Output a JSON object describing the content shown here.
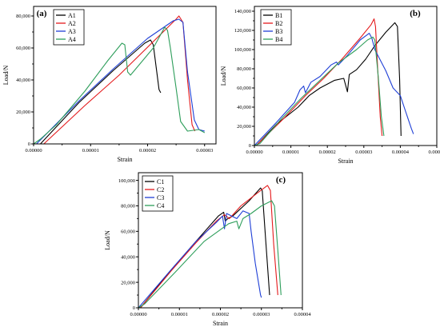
{
  "chart_data": [
    {
      "id": "a",
      "type": "line",
      "panel_label": "(a)",
      "xlabel": "Strain",
      "ylabel": "Load/N",
      "xlim": [
        0,
        3.2e-05
      ],
      "ylim": [
        0,
        86000
      ],
      "xticks": [
        0,
        1e-05,
        2e-05,
        3e-05
      ],
      "xtick_labels": [
        "0.00000",
        "0.00001",
        "0.00002",
        "0.00003"
      ],
      "yticks": [
        0,
        20000,
        40000,
        60000,
        80000
      ],
      "ytick_labels": [
        "0",
        "20,000",
        "40,000",
        "60,000",
        "80,000"
      ],
      "legend_position": "top-left",
      "series": [
        {
          "name": "A1",
          "color": "#000000",
          "points": [
            [
              1.2e-06,
              0
            ],
            [
              8e-06,
              26000
            ],
            [
              1.4e-05,
              46000
            ],
            [
              1.95e-05,
              63000
            ],
            [
              2.05e-05,
              65000
            ],
            [
              2.1e-05,
              62000
            ],
            [
              2.15e-05,
              48000
            ],
            [
              2.2e-05,
              34000
            ],
            [
              2.23e-05,
              32000
            ]
          ]
        },
        {
          "name": "A2",
          "color": "#e41a1c",
          "points": [
            [
              1.8e-06,
              0
            ],
            [
              9e-06,
              24000
            ],
            [
              1.5e-05,
              43000
            ],
            [
              2.1e-05,
              64000
            ],
            [
              2.5e-05,
              78000
            ],
            [
              2.55e-05,
              80000
            ],
            [
              2.62e-05,
              76000
            ],
            [
              2.7e-05,
              40000
            ],
            [
              2.78e-05,
              12000
            ],
            [
              2.83e-05,
              8000
            ]
          ]
        },
        {
          "name": "A3",
          "color": "#1f3fd6",
          "points": [
            [
              5e-07,
              0
            ],
            [
              8e-06,
              27000
            ],
            [
              1.4e-05,
              47000
            ],
            [
              2e-05,
              66000
            ],
            [
              2.45e-05,
              77000
            ],
            [
              2.55e-05,
              78000
            ],
            [
              2.62e-05,
              76000
            ],
            [
              2.7e-05,
              45000
            ],
            [
              2.82e-05,
              15000
            ],
            [
              2.9e-05,
              9000
            ],
            [
              3e-05,
              8000
            ]
          ]
        },
        {
          "name": "A4",
          "color": "#2e9e5b",
          "points": [
            [
              0,
              0
            ],
            [
              1.2e-06,
              3000
            ],
            [
              4e-06,
              12000
            ],
            [
              9e-06,
              33000
            ],
            [
              1.3e-05,
              52000
            ],
            [
              1.55e-05,
              63000
            ],
            [
              1.6e-05,
              62000
            ],
            [
              1.65e-05,
              45000
            ],
            [
              1.7e-05,
              43000
            ],
            [
              2.1e-05,
              60000
            ],
            [
              2.3e-05,
              73000
            ],
            [
              2.35e-05,
              71000
            ],
            [
              2.4e-05,
              60000
            ],
            [
              2.5e-05,
              35000
            ],
            [
              2.58e-05,
              14000
            ],
            [
              2.7e-05,
              8000
            ],
            [
              2.9e-05,
              9000
            ],
            [
              3e-05,
              7000
            ]
          ]
        }
      ]
    },
    {
      "id": "b",
      "type": "line",
      "panel_label": "(b)",
      "xlabel": "Strain",
      "ylabel": "Load/N",
      "xlim": [
        0,
        5e-05
      ],
      "ylim": [
        0,
        145000
      ],
      "xticks": [
        0,
        1e-05,
        2e-05,
        3e-05,
        4e-05,
        5e-05
      ],
      "xtick_labels": [
        "0.00000",
        "0.00001",
        "0.00002",
        "0.00003",
        "0.00004",
        "0.00005"
      ],
      "yticks": [
        0,
        20000,
        40000,
        60000,
        80000,
        100000,
        120000,
        140000
      ],
      "ytick_labels": [
        "0",
        "20,000",
        "40,000",
        "60,000",
        "80,000",
        "100,000",
        "120,000",
        "140,000"
      ],
      "legend_position": "top-left",
      "series": [
        {
          "name": "B1",
          "color": "#000000",
          "points": [
            [
              5e-07,
              0
            ],
            [
              6e-06,
              22000
            ],
            [
              1.2e-05,
              40000
            ],
            [
              1.5e-05,
              52000
            ],
            [
              1.8e-05,
              60000
            ],
            [
              2.2e-05,
              68000
            ],
            [
              2.45e-05,
              70000
            ],
            [
              2.55e-05,
              56000
            ],
            [
              2.6e-05,
              74000
            ],
            [
              2.8e-05,
              79000
            ],
            [
              3.05e-05,
              90000
            ],
            [
              3.3e-05,
              104000
            ],
            [
              3.6e-05,
              118000
            ],
            [
              3.85e-05,
              128000
            ],
            [
              3.92e-05,
              124000
            ],
            [
              3.98e-05,
              70000
            ],
            [
              4.02e-05,
              10000
            ]
          ]
        },
        {
          "name": "B2",
          "color": "#e41a1c",
          "points": [
            [
              5e-07,
              0
            ],
            [
              8e-06,
              28000
            ],
            [
              1.4e-05,
              52000
            ],
            [
              1.9e-05,
              70000
            ],
            [
              2.4e-05,
              90000
            ],
            [
              2.9e-05,
              112000
            ],
            [
              3.2e-05,
              126000
            ],
            [
              3.28e-05,
              132000
            ],
            [
              3.32e-05,
              124000
            ],
            [
              3.38e-05,
              80000
            ],
            [
              3.45e-05,
              30000
            ],
            [
              3.5e-05,
              10000
            ]
          ]
        },
        {
          "name": "B3",
          "color": "#1f3fd6",
          "points": [
            [
              0,
              0
            ],
            [
              6e-06,
              24000
            ],
            [
              1.1e-05,
              45000
            ],
            [
              1.25e-05,
              58000
            ],
            [
              1.35e-05,
              62000
            ],
            [
              1.4e-05,
              55000
            ],
            [
              1.55e-05,
              66000
            ],
            [
              1.8e-05,
              72000
            ],
            [
              2.1e-05,
              84000
            ],
            [
              2.25e-05,
              87000
            ],
            [
              2.3e-05,
              84000
            ],
            [
              2.55e-05,
              94000
            ],
            [
              2.9e-05,
              110000
            ],
            [
              3.15e-05,
              117000
            ],
            [
              3.22e-05,
              112000
            ],
            [
              3.3e-05,
              100000
            ],
            [
              3.6e-05,
              78000
            ],
            [
              3.8e-05,
              60000
            ],
            [
              4e-05,
              52000
            ],
            [
              4.15e-05,
              35000
            ],
            [
              4.3e-05,
              18000
            ],
            [
              4.36e-05,
              12000
            ]
          ]
        },
        {
          "name": "B4",
          "color": "#2e9e5b",
          "points": [
            [
              0,
              0
            ],
            [
              1.5e-06,
              2000
            ],
            [
              7e-06,
              26000
            ],
            [
              1.3e-05,
              50000
            ],
            [
              1.8e-05,
              68000
            ],
            [
              2.3e-05,
              86000
            ],
            [
              2.8e-05,
              100000
            ],
            [
              3.1e-05,
              110000
            ],
            [
              3.25e-05,
              113000
            ],
            [
              3.3e-05,
              110000
            ],
            [
              3.4e-05,
              70000
            ],
            [
              3.48e-05,
              30000
            ],
            [
              3.55e-05,
              10000
            ]
          ]
        }
      ]
    },
    {
      "id": "c",
      "type": "line",
      "panel_label": "(c)",
      "xlabel": "Strain",
      "ylabel": "Load/N",
      "xlim": [
        0,
        4e-05
      ],
      "ylim": [
        0,
        106000
      ],
      "xticks": [
        0,
        1e-05,
        2e-05,
        3e-05,
        4e-05
      ],
      "xtick_labels": [
        "0.00000",
        "0.00001",
        "0.00002",
        "0.00003",
        "0.00004"
      ],
      "yticks": [
        0,
        20000,
        40000,
        60000,
        80000,
        100000
      ],
      "ytick_labels": [
        "0",
        "20,000",
        "40,000",
        "60,000",
        "80,000",
        "100,000"
      ],
      "legend_position": "top-left",
      "series": [
        {
          "name": "C1",
          "color": "#000000",
          "points": [
            [
              5e-07,
              0
            ],
            [
              7e-06,
              26000
            ],
            [
              1.4e-05,
              52000
            ],
            [
              1.95e-05,
              72000
            ],
            [
              2.08e-05,
              75000
            ],
            [
              2.12e-05,
              68000
            ],
            [
              2.18e-05,
              70000
            ],
            [
              2.3e-05,
              72000
            ],
            [
              2.7e-05,
              84000
            ],
            [
              2.98e-05,
              94000
            ],
            [
              3.02e-05,
              92000
            ],
            [
              3.1e-05,
              55000
            ],
            [
              3.2e-05,
              10000
            ]
          ]
        },
        {
          "name": "C2",
          "color": "#e41a1c",
          "points": [
            [
              5e-07,
              0
            ],
            [
              8e-06,
              29000
            ],
            [
              1.4e-05,
              51000
            ],
            [
              1.9e-05,
              68000
            ],
            [
              2.1e-05,
              73000
            ],
            [
              2.22e-05,
              70000
            ],
            [
              2.5e-05,
              80000
            ],
            [
              2.9e-05,
              90000
            ],
            [
              3.15e-05,
              96000
            ],
            [
              3.22e-05,
              92000
            ],
            [
              3.3e-05,
              50000
            ],
            [
              3.4e-05,
              10000
            ]
          ]
        },
        {
          "name": "C3",
          "color": "#1f3fd6",
          "points": [
            [
              0,
              0
            ],
            [
              8e-06,
              30000
            ],
            [
              1.4e-05,
              52000
            ],
            [
              1.9e-05,
              67000
            ],
            [
              2.05e-05,
              72000
            ],
            [
              2.1e-05,
              62000
            ],
            [
              2.15e-05,
              74000
            ],
            [
              2.4e-05,
              70000
            ],
            [
              2.55e-05,
              76000
            ],
            [
              2.7e-05,
              74000
            ],
            [
              2.75e-05,
              60000
            ],
            [
              2.85e-05,
              35000
            ],
            [
              2.98e-05,
              10000
            ],
            [
              3e-05,
              8000
            ]
          ]
        },
        {
          "name": "C4",
          "color": "#2e9e5b",
          "points": [
            [
              0,
              0
            ],
            [
              1.5e-06,
              3000
            ],
            [
              9e-06,
              28000
            ],
            [
              1.6e-05,
              52000
            ],
            [
              2.2e-05,
              66000
            ],
            [
              2.4e-05,
              68000
            ],
            [
              2.45e-05,
              62000
            ],
            [
              2.55e-05,
              70000
            ],
            [
              2.75e-05,
              74000
            ],
            [
              3e-05,
              80000
            ],
            [
              3.25e-05,
              84000
            ],
            [
              3.32e-05,
              80000
            ],
            [
              3.4e-05,
              45000
            ],
            [
              3.48e-05,
              10000
            ]
          ]
        }
      ]
    }
  ]
}
